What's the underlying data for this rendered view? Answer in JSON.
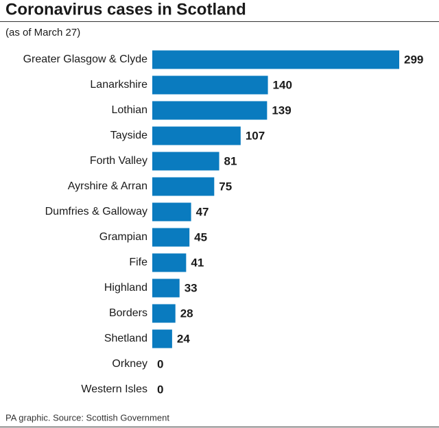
{
  "chart_data": {
    "type": "bar",
    "orientation": "horizontal",
    "title": "Coronavirus cases in Scotland",
    "subtitle": "(as of March 27)",
    "source": "PA graphic. Source: Scottish Government",
    "categories": [
      "Greater Glasgow & Clyde",
      "Lanarkshire",
      "Lothian",
      "Tayside",
      "Forth Valley",
      "Ayrshire & Arran",
      "Dumfries & Galloway",
      "Grampian",
      "Fife",
      "Highland",
      "Borders",
      "Shetland",
      "Orkney",
      "Western Isles"
    ],
    "values": [
      299,
      140,
      139,
      107,
      81,
      75,
      47,
      45,
      41,
      33,
      28,
      24,
      0,
      0
    ],
    "color": "#0a7bbf"
  }
}
